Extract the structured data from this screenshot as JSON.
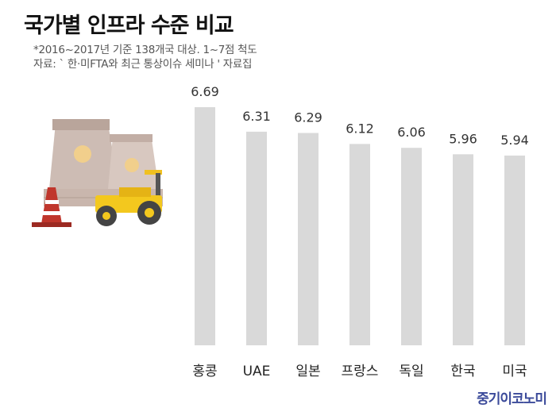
{
  "title": "국가별 인프라 수준 비교",
  "subtitle_note": "*2016~2017년 기준 138개국 대상. 1~7점 척도",
  "source": "자료: ` 한·미FTA와 최근 통상이슈 세미나 ' 자료집",
  "brand": "중기이코노미",
  "colors": {
    "bar": "#d9d9d9",
    "title": "#111111",
    "brand": "#3b4a9a"
  },
  "illustration": "construction-site-icon",
  "chart_data": {
    "type": "bar",
    "categories": [
      "홍콩",
      "UAE",
      "일본",
      "프랑스",
      "독일",
      "한국",
      "미국"
    ],
    "values": [
      6.69,
      6.31,
      6.29,
      6.12,
      6.06,
      5.96,
      5.94
    ],
    "value_labels": [
      "6.69",
      "6.31",
      "6.29",
      "6.12",
      "6.06",
      "5.96",
      "5.94"
    ],
    "title": "국가별 인프라 수준 비교",
    "xlabel": "",
    "ylabel": "",
    "grid": false
  }
}
